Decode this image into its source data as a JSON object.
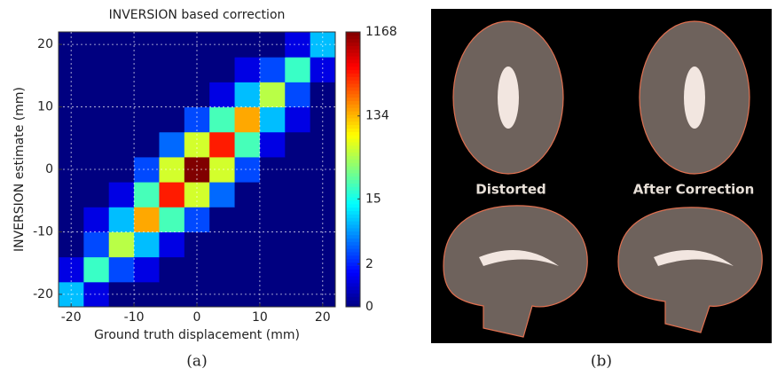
{
  "chart_data": {
    "type": "heatmap",
    "title": "INVERSION based correction",
    "x_label": "Ground truth displacement (mm)",
    "y_label": "INVERSION estimate (mm)",
    "xbins": [
      -22,
      -18,
      -14,
      -10,
      -6,
      -2,
      2,
      6,
      10,
      14,
      18,
      22
    ],
    "ybins": [
      -22,
      -18,
      -14,
      -10,
      -6,
      -2,
      2,
      6,
      10,
      14,
      18,
      22
    ],
    "z": [
      [
        8,
        1,
        0,
        0,
        0,
        0,
        0,
        0,
        0,
        0,
        0
      ],
      [
        1,
        20,
        3,
        1,
        0,
        0,
        0,
        0,
        0,
        0,
        0
      ],
      [
        0,
        3,
        50,
        8,
        1,
        0,
        0,
        0,
        0,
        0,
        0
      ],
      [
        0,
        1,
        8,
        150,
        22,
        3,
        0,
        0,
        0,
        0,
        0
      ],
      [
        0,
        0,
        1,
        22,
        400,
        60,
        4,
        0,
        0,
        0,
        0
      ],
      [
        0,
        0,
        0,
        3,
        60,
        1168,
        60,
        3,
        0,
        0,
        0
      ],
      [
        0,
        0,
        0,
        0,
        4,
        60,
        400,
        22,
        1,
        0,
        0
      ],
      [
        0,
        0,
        0,
        0,
        0,
        3,
        22,
        150,
        8,
        1,
        0
      ],
      [
        0,
        0,
        0,
        0,
        0,
        0,
        1,
        8,
        50,
        3,
        0
      ],
      [
        0,
        0,
        0,
        0,
        0,
        0,
        0,
        1,
        3,
        20,
        1
      ],
      [
        0,
        0,
        0,
        0,
        0,
        0,
        0,
        0,
        0,
        1,
        8
      ]
    ],
    "xlim": [
      -22,
      22
    ],
    "xticks": [
      -20,
      -10,
      0,
      10,
      20
    ],
    "ylim": [
      -22,
      22
    ],
    "yticks": [
      -20,
      -10,
      0,
      10,
      20
    ],
    "clim": [
      0,
      1168
    ],
    "cticks": [
      0,
      2,
      15,
      134,
      1168
    ],
    "color_scale": "log",
    "colormap": "jet",
    "grid": true
  },
  "panel_labels": [
    "(a)",
    "(b)"
  ],
  "images": {
    "labels": [
      "Distorted",
      "After Correction"
    ]
  }
}
